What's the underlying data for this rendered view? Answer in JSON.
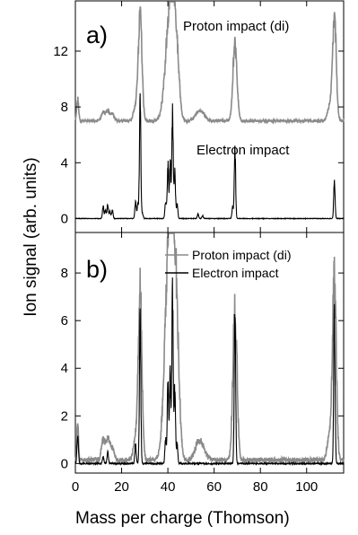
{
  "chart_data": {
    "type": "line",
    "xlabel": "Mass per charge (Thomson)",
    "ylabel": "Ion signal (arb. units)",
    "xlim": [
      0,
      116
    ],
    "xticks": [
      0,
      20,
      40,
      60,
      80,
      100
    ],
    "colors": {
      "proton": "#8a8a8a",
      "electron": "#000000"
    },
    "panels": [
      {
        "label": "a)",
        "ylim": [
          -1,
          15.6
        ],
        "yticks": [
          0,
          4,
          8,
          12
        ],
        "annotations": [
          "Proton impact (di)",
          "Electron impact"
        ],
        "series": [
          {
            "name": "Proton impact (di)",
            "baseline": 7.0,
            "noise": 0.08,
            "peaks": [
              [
                1,
                1.6,
                0.4
              ],
              [
                12,
                0.6,
                0.8
              ],
              [
                14,
                0.7,
                0.8
              ],
              [
                16,
                0.5,
                0.8
              ],
              [
                26,
                1.0,
                0.9
              ],
              [
                28,
                7.6,
                0.8
              ],
              [
                40,
                5.0,
                1.6
              ],
              [
                42,
                7.1,
                1.3
              ],
              [
                44,
                3.5,
                1.1
              ],
              [
                53,
                0.5,
                1.5
              ],
              [
                55,
                0.4,
                1.5
              ],
              [
                69,
                5.4,
                0.9
              ],
              [
                110,
                1.0,
                1.0
              ],
              [
                112,
                7.4,
                0.8
              ]
            ]
          },
          {
            "name": "Electron impact",
            "baseline": 0.0,
            "noise": 0.02,
            "peaks": [
              [
                12,
                0.9,
                0.3
              ],
              [
                13,
                0.6,
                0.3
              ],
              [
                14,
                1.0,
                0.3
              ],
              [
                15,
                0.5,
                0.3
              ],
              [
                16,
                0.6,
                0.3
              ],
              [
                26,
                1.2,
                0.3
              ],
              [
                27,
                1.0,
                0.3
              ],
              [
                28,
                8.5,
                0.3
              ],
              [
                29,
                0.4,
                0.3
              ],
              [
                39,
                1.2,
                0.3
              ],
              [
                40,
                3.8,
                0.3
              ],
              [
                41,
                4.0,
                0.3
              ],
              [
                42,
                7.7,
                0.3
              ],
              [
                43,
                3.2,
                0.3
              ],
              [
                44,
                1.0,
                0.3
              ],
              [
                53,
                0.3,
                0.3
              ],
              [
                55,
                0.2,
                0.3
              ],
              [
                68,
                0.8,
                0.3
              ],
              [
                69,
                4.8,
                0.3
              ],
              [
                112,
                2.6,
                0.3
              ]
            ]
          }
        ]
      },
      {
        "label": "b)",
        "ylim": [
          -0.4,
          9.7
        ],
        "yticks": [
          0,
          2,
          4,
          6,
          8
        ],
        "legend": [
          {
            "name": "Proton impact (di)",
            "color": "#8a8a8a"
          },
          {
            "name": "Electron impact",
            "color": "#000000"
          }
        ],
        "series": [
          {
            "name": "Proton impact (di)",
            "baseline": 0.15,
            "noise": 0.1,
            "peaks": [
              [
                1,
                1.8,
                0.3
              ],
              [
                12,
                0.8,
                0.8
              ],
              [
                14,
                0.9,
                0.8
              ],
              [
                16,
                0.5,
                0.8
              ],
              [
                26,
                0.9,
                0.9
              ],
              [
                28,
                7.1,
                0.8
              ],
              [
                40,
                6.8,
                1.6
              ],
              [
                42,
                7.8,
                1.3
              ],
              [
                44,
                3.9,
                1.1
              ],
              [
                53,
                0.6,
                1.5
              ],
              [
                55,
                0.4,
                1.5
              ],
              [
                69,
                6.4,
                0.9
              ],
              [
                110,
                1.0,
                1.0
              ],
              [
                112,
                7.6,
                0.8
              ]
            ]
          },
          {
            "name": "Electron impact",
            "baseline": 0.0,
            "noise": 0.03,
            "peaks": [
              [
                1,
                1.2,
                0.3
              ],
              [
                12,
                0.3,
                0.3
              ],
              [
                14,
                0.5,
                0.3
              ],
              [
                26,
                0.8,
                0.3
              ],
              [
                28,
                6.0,
                0.3
              ],
              [
                39,
                1.0,
                0.3
              ],
              [
                40,
                3.3,
                0.3
              ],
              [
                41,
                3.7,
                0.3
              ],
              [
                42,
                7.1,
                0.3
              ],
              [
                43,
                3.0,
                0.3
              ],
              [
                44,
                0.8,
                0.3
              ],
              [
                69,
                6.7,
                0.3
              ],
              [
                112,
                6.3,
                0.3
              ]
            ]
          }
        ]
      }
    ]
  }
}
